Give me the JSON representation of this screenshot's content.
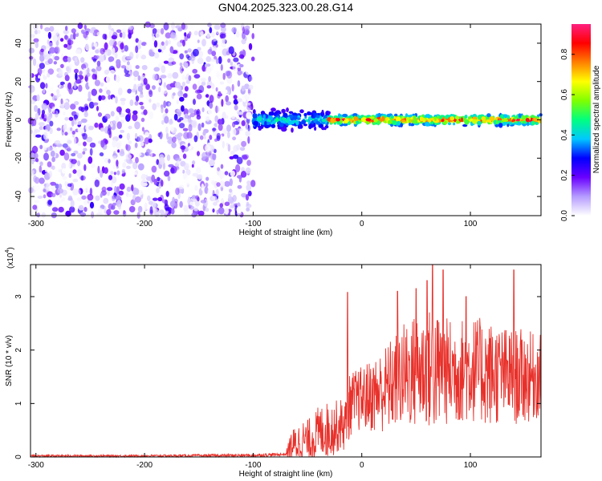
{
  "title": "GN04.2025.323.00.28.G14",
  "chart_data": [
    {
      "type": "heatmap",
      "title": "GN04.2025.323.00.28.G14",
      "xlabel": "Height of straight line (km)",
      "ylabel": "Frequency (Hz)",
      "xlim": [
        -305,
        165
      ],
      "ylim": [
        -50,
        50
      ],
      "x_ticks": [
        -300,
        -200,
        -100,
        0,
        100
      ],
      "x_tick_labels": [
        "-300",
        "-200",
        "-100",
        "0",
        "100"
      ],
      "y_ticks": [
        -40,
        -20,
        0,
        20,
        40
      ],
      "y_tick_labels": [
        "-40",
        "-20",
        "0",
        "20",
        "40"
      ],
      "colorbar": {
        "label": "Normalized spectral amplitude",
        "range": [
          0,
          0.95
        ],
        "ticks": [
          0.0,
          0.2,
          0.4,
          0.6,
          0.8
        ],
        "tick_labels": [
          "0.0",
          "0.2",
          "0.4",
          "0.6",
          "0.8"
        ],
        "colormap": [
          "#ffffff",
          "#b59cff",
          "#6a00ff",
          "#0000ff",
          "#00c8ff",
          "#00ff80",
          "#80ff00",
          "#ffff00",
          "#ff8000",
          "#ff0000",
          "#ff2080"
        ]
      },
      "regions": [
        {
          "x_range": [
            -305,
            -100
          ],
          "description_value": "broadband noise",
          "freq_range": [
            -50,
            50
          ],
          "amplitude": [
            0.0,
            0.25
          ]
        },
        {
          "x_range": [
            -100,
            -30
          ],
          "freq_center": 0,
          "freq_halfwidth": 6,
          "amplitude": [
            0.2,
            0.5
          ]
        },
        {
          "x_range": [
            -30,
            165
          ],
          "freq_center": 0,
          "freq_halfwidth": 3,
          "amplitude": [
            0.3,
            0.95
          ]
        }
      ],
      "grid": false
    },
    {
      "type": "line",
      "xlabel": "Height of straight line (km)",
      "ylabel": "SNR (10 * v/v)",
      "y_multiplier_label": "(x10",
      "y_multiplier_exp": "4",
      "y_multiplier_close": ")",
      "xlim": [
        -305,
        165
      ],
      "ylim": [
        0,
        3.6
      ],
      "x_ticks": [
        -300,
        -200,
        -100,
        0,
        100
      ],
      "x_tick_labels": [
        "-300",
        "-200",
        "-100",
        "0",
        "100"
      ],
      "y_ticks": [
        0,
        1,
        2,
        3
      ],
      "y_tick_labels": [
        "0",
        "1",
        "2",
        "3"
      ],
      "series": [
        {
          "color": "#e8302a",
          "x": [
            -305,
            -200,
            -100,
            -70,
            -65,
            -55,
            -50,
            -45,
            -40,
            -35,
            -30,
            -25,
            -20,
            -15,
            -12,
            -10,
            -5,
            0,
            10,
            20,
            30,
            40,
            50,
            60,
            65,
            70,
            80,
            90,
            100,
            110,
            120,
            130,
            140,
            150,
            160,
            165
          ],
          "baseline": [
            0.02,
            0.02,
            0.03,
            0.05,
            0.2,
            0.3,
            0.3,
            0.35,
            0.45,
            0.5,
            0.5,
            0.55,
            0.6,
            0.6,
            0.9,
            1.0,
            1.05,
            1.1,
            1.15,
            1.25,
            1.4,
            1.55,
            1.6,
            1.65,
            1.6,
            1.6,
            1.6,
            1.6,
            1.65,
            1.6,
            1.55,
            1.55,
            1.5,
            1.5,
            1.5,
            1.5
          ],
          "spread": [
            0.02,
            0.02,
            0.03,
            0.03,
            0.3,
            0.4,
            0.4,
            0.45,
            0.5,
            0.5,
            0.55,
            0.5,
            0.5,
            0.5,
            0.6,
            0.6,
            0.6,
            0.6,
            0.7,
            0.8,
            0.9,
            1.0,
            1.1,
            1.1,
            1.2,
            1.1,
            1.0,
            1.0,
            1.0,
            1.0,
            1.0,
            0.9,
            0.9,
            0.9,
            0.8,
            0.8
          ],
          "peaks": [
            [
              -13,
              3.08
            ],
            [
              33,
              3.1
            ],
            [
              50,
              3.15
            ],
            [
              60,
              3.3
            ],
            [
              65,
              3.6
            ],
            [
              75,
              3.5
            ],
            [
              96,
              3.0
            ],
            [
              140,
              3.5
            ]
          ]
        }
      ],
      "grid": false
    }
  ]
}
